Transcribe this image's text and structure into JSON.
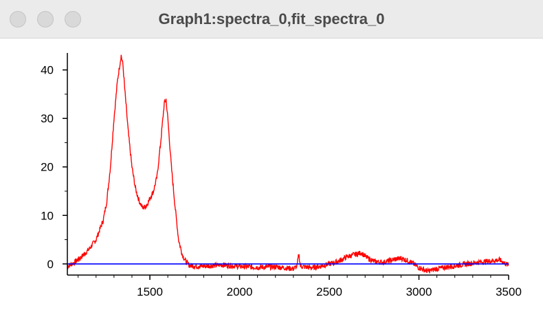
{
  "window": {
    "title": "Graph1:spectra_0,fit_spectra_0",
    "buttons": [
      "close",
      "minimize",
      "zoom"
    ]
  },
  "colors": {
    "spectrum": "#ff0000",
    "fit": "#0000ff",
    "axis": "#000000"
  },
  "chart_data": {
    "type": "line",
    "title": "",
    "xlabel": "",
    "ylabel": "",
    "xlim": [
      1040,
      3500
    ],
    "ylim": [
      -2.3,
      43.5
    ],
    "x_ticks": [
      1500,
      2000,
      2500,
      3000,
      3500
    ],
    "y_ticks": [
      0,
      10,
      20,
      30,
      40
    ],
    "grid": false,
    "legend": "none",
    "series": [
      {
        "color": "#ff0000",
        "x": [
          1040,
          1080,
          1120,
          1160,
          1200,
          1240,
          1260,
          1280,
          1300,
          1320,
          1340,
          1350,
          1360,
          1380,
          1400,
          1420,
          1440,
          1460,
          1480,
          1500,
          1520,
          1540,
          1560,
          1580,
          1590,
          1600,
          1620,
          1640,
          1660,
          1680,
          1700,
          1720,
          1760,
          1800,
          1900,
          2000,
          2100,
          2200,
          2300,
          2320,
          2330,
          2340,
          2400,
          2450,
          2500,
          2550,
          2600,
          2650,
          2680,
          2700,
          2750,
          2800,
          2850,
          2900,
          2950,
          3000,
          3050,
          3100,
          3200,
          3300,
          3400,
          3450,
          3500
        ],
        "y": [
          -0.5,
          0.3,
          1.5,
          3.0,
          5.0,
          9.0,
          13.0,
          20.0,
          30.0,
          38.0,
          43.0,
          41.0,
          36.0,
          27.0,
          20.0,
          15.5,
          13.0,
          11.5,
          12.0,
          13.5,
          15.0,
          18.0,
          25.0,
          33.0,
          34.0,
          30.0,
          20.0,
          12.0,
          5.0,
          2.0,
          0.5,
          -0.3,
          -0.5,
          -0.5,
          -0.2,
          -0.5,
          -0.7,
          -0.6,
          -1.0,
          -0.5,
          2.0,
          -0.5,
          -0.8,
          -0.5,
          0.0,
          0.5,
          1.5,
          2.0,
          2.3,
          1.5,
          0.5,
          0.3,
          0.8,
          1.2,
          0.5,
          -0.8,
          -1.5,
          -1.0,
          -0.4,
          0.2,
          0.6,
          0.8,
          -0.3
        ]
      },
      {
        "color": "#0000ff",
        "x": [
          1040,
          3500
        ],
        "y": [
          0,
          0
        ]
      }
    ]
  }
}
